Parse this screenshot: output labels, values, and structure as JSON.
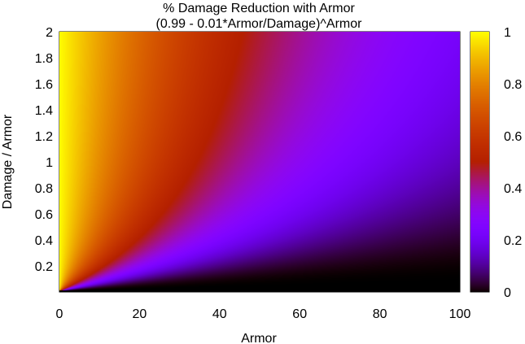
{
  "chart_data": {
    "type": "heatmap",
    "title": "% Damage Reduction with Armor",
    "subtitle": "(0.99 - 0.01*Armor/Damage)^Armor",
    "xlabel": "Armor",
    "ylabel": "Damage / Armor",
    "xlim": [
      0,
      100
    ],
    "ylim": [
      0,
      2
    ],
    "zlim": [
      0,
      1
    ],
    "x_ticks": [
      "0",
      "20",
      "40",
      "60",
      "80",
      "100"
    ],
    "y_ticks": [
      "0.2",
      "0.4",
      "0.6",
      "0.8",
      "1",
      "1.2",
      "1.4",
      "1.6",
      "1.8",
      "2"
    ],
    "colorbar_ticks": [
      "0",
      "0.2",
      "0.4",
      "0.6",
      "0.8",
      "1"
    ],
    "contour_levels": [
      0.1,
      0.2,
      0.3,
      0.4,
      0.5,
      0.6,
      0.7,
      0.8,
      0.9
    ],
    "colormap": "gnuplot (black-purple-red-orange-yellow)",
    "grid": false,
    "colorbar_position": "right"
  }
}
